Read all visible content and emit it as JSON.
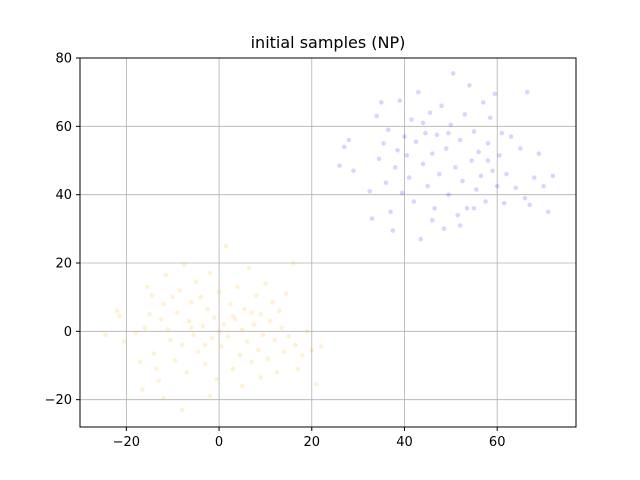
{
  "chart_data": {
    "type": "scatter",
    "title": "initial samples (NP)",
    "xlabel": "",
    "ylabel": "",
    "xlim": [
      -30,
      77
    ],
    "ylim": [
      -28,
      80
    ],
    "xticks": [
      -20,
      0,
      20,
      40,
      60
    ],
    "yticks": [
      -20,
      0,
      20,
      40,
      60,
      80
    ],
    "xtick_labels": [
      "−20",
      "0",
      "20",
      "40",
      "60"
    ],
    "ytick_labels": [
      "−20",
      "0",
      "20",
      "40",
      "60",
      "80"
    ],
    "grid": true,
    "series": [
      {
        "color": "#ffa500",
        "points": [
          [
            -24.5,
            -1.0
          ],
          [
            -22.0,
            6.0
          ],
          [
            -21.5,
            4.5
          ],
          [
            -20.5,
            -3.0
          ],
          [
            -17.0,
            -9.0
          ],
          [
            -16.5,
            -17.0
          ],
          [
            -16.0,
            1.0
          ],
          [
            -15.5,
            13.0
          ],
          [
            -15.0,
            5.0
          ],
          [
            -14.5,
            10.5
          ],
          [
            -14.0,
            -6.5
          ],
          [
            -13.5,
            -11.0
          ],
          [
            -13.0,
            -14.5
          ],
          [
            -12.5,
            3.5
          ],
          [
            -12.0,
            8.0
          ],
          [
            -11.5,
            16.5
          ],
          [
            -11.0,
            0.5
          ],
          [
            -10.5,
            -2.5
          ],
          [
            -10.0,
            10.0
          ],
          [
            -9.5,
            -8.5
          ],
          [
            -9.0,
            5.5
          ],
          [
            -8.5,
            12.0
          ],
          [
            -8.0,
            -4.0
          ],
          [
            -7.5,
            19.5
          ],
          [
            -7.0,
            -12.0
          ],
          [
            -6.5,
            3.0
          ],
          [
            -6.0,
            8.5
          ],
          [
            -5.5,
            -1.0
          ],
          [
            -5.0,
            14.5
          ],
          [
            -4.5,
            -6.0
          ],
          [
            -4.0,
            10.0
          ],
          [
            -3.5,
            1.5
          ],
          [
            -3.0,
            -9.5
          ],
          [
            -2.5,
            6.5
          ],
          [
            -2.0,
            17.0
          ],
          [
            -1.5,
            -2.0
          ],
          [
            -1.0,
            4.0
          ],
          [
            -0.5,
            -14.0
          ],
          [
            0.0,
            11.5
          ],
          [
            0.5,
            -4.5
          ],
          [
            1.0,
            2.0
          ],
          [
            1.5,
            25.0
          ],
          [
            2.0,
            -1.5
          ],
          [
            2.5,
            8.0
          ],
          [
            3.0,
            -11.0
          ],
          [
            3.5,
            3.5
          ],
          [
            4.0,
            13.0
          ],
          [
            4.5,
            -7.0
          ],
          [
            5.0,
            0.5
          ],
          [
            5.5,
            6.5
          ],
          [
            6.0,
            -3.0
          ],
          [
            6.5,
            18.5
          ],
          [
            7.0,
            -9.0
          ],
          [
            7.5,
            2.0
          ],
          [
            8.0,
            10.5
          ],
          [
            8.5,
            -5.5
          ],
          [
            9.0,
            5.0
          ],
          [
            9.5,
            -1.0
          ],
          [
            10.0,
            14.0
          ],
          [
            10.5,
            -8.0
          ],
          [
            11.0,
            3.0
          ],
          [
            11.5,
            8.5
          ],
          [
            12.0,
            -2.5
          ],
          [
            12.5,
            -12.0
          ],
          [
            13.0,
            6.0
          ],
          [
            13.5,
            1.0
          ],
          [
            14.0,
            -6.0
          ],
          [
            14.5,
            11.0
          ],
          [
            15.0,
            -1.5
          ],
          [
            16.0,
            20.0
          ],
          [
            16.5,
            -4.0
          ],
          [
            17.0,
            -11.0
          ],
          [
            18.0,
            -7.0
          ],
          [
            19.0,
            0.0
          ],
          [
            20.0,
            -5.5
          ],
          [
            21.0,
            -15.5
          ],
          [
            22.0,
            -4.5
          ],
          [
            -8.0,
            -23.0
          ],
          [
            -12.0,
            -19.5
          ],
          [
            -2.0,
            -19.0
          ],
          [
            5.0,
            -16.0
          ],
          [
            9.0,
            -13.5
          ],
          [
            -18.0,
            -0.5
          ],
          [
            -6.0,
            1.0
          ],
          [
            0.0,
            0.0
          ],
          [
            3.0,
            4.5
          ],
          [
            -3.0,
            -4.0
          ],
          [
            7.0,
            5.5
          ]
        ]
      },
      {
        "color": "#0000ff",
        "points": [
          [
            26.0,
            48.5
          ],
          [
            27.0,
            54.0
          ],
          [
            28.0,
            56.0
          ],
          [
            29.0,
            47.0
          ],
          [
            32.5,
            41.0
          ],
          [
            33.0,
            33.0
          ],
          [
            34.0,
            63.0
          ],
          [
            34.5,
            50.5
          ],
          [
            35.0,
            67.0
          ],
          [
            35.5,
            55.0
          ],
          [
            36.0,
            43.5
          ],
          [
            36.5,
            59.0
          ],
          [
            37.0,
            35.0
          ],
          [
            37.5,
            29.5
          ],
          [
            38.0,
            48.0
          ],
          [
            38.5,
            53.0
          ],
          [
            39.0,
            67.5
          ],
          [
            39.5,
            40.5
          ],
          [
            40.0,
            57.0
          ],
          [
            40.5,
            51.5
          ],
          [
            41.0,
            45.0
          ],
          [
            41.5,
            62.0
          ],
          [
            42.0,
            38.0
          ],
          [
            42.5,
            55.5
          ],
          [
            43.0,
            70.0
          ],
          [
            43.5,
            27.0
          ],
          [
            44.0,
            49.0
          ],
          [
            44.5,
            58.0
          ],
          [
            45.0,
            42.5
          ],
          [
            45.5,
            64.0
          ],
          [
            46.0,
            52.0
          ],
          [
            46.5,
            36.0
          ],
          [
            47.0,
            57.5
          ],
          [
            47.5,
            46.0
          ],
          [
            48.0,
            66.0
          ],
          [
            48.5,
            30.0
          ],
          [
            49.0,
            53.5
          ],
          [
            49.5,
            40.0
          ],
          [
            50.0,
            60.5
          ],
          [
            50.5,
            75.5
          ],
          [
            51.0,
            48.0
          ],
          [
            51.5,
            34.0
          ],
          [
            52.0,
            56.0
          ],
          [
            52.5,
            44.0
          ],
          [
            53.0,
            63.5
          ],
          [
            53.5,
            36.0
          ],
          [
            54.0,
            72.0
          ],
          [
            54.5,
            50.0
          ],
          [
            55.0,
            58.5
          ],
          [
            55.5,
            41.5
          ],
          [
            56.0,
            52.5
          ],
          [
            56.5,
            45.5
          ],
          [
            57.0,
            67.0
          ],
          [
            57.5,
            38.0
          ],
          [
            58.0,
            55.0
          ],
          [
            58.5,
            62.5
          ],
          [
            59.0,
            47.0
          ],
          [
            59.5,
            69.5
          ],
          [
            60.0,
            42.5
          ],
          [
            60.5,
            51.5
          ],
          [
            61.0,
            58.0
          ],
          [
            62.0,
            46.0
          ],
          [
            63.0,
            57.0
          ],
          [
            64.0,
            42.0
          ],
          [
            65.0,
            53.5
          ],
          [
            66.0,
            39.0
          ],
          [
            66.5,
            70.0
          ],
          [
            67.0,
            37.0
          ],
          [
            68.0,
            45.0
          ],
          [
            69.0,
            52.0
          ],
          [
            70.0,
            42.5
          ],
          [
            71.0,
            35.0
          ],
          [
            72.0,
            45.5
          ],
          [
            46.0,
            32.5
          ],
          [
            52.0,
            31.0
          ],
          [
            55.0,
            36.0
          ],
          [
            61.5,
            37.5
          ],
          [
            44.0,
            61.0
          ],
          [
            49.5,
            58.0
          ],
          [
            58.0,
            50.0
          ]
        ]
      }
    ]
  }
}
